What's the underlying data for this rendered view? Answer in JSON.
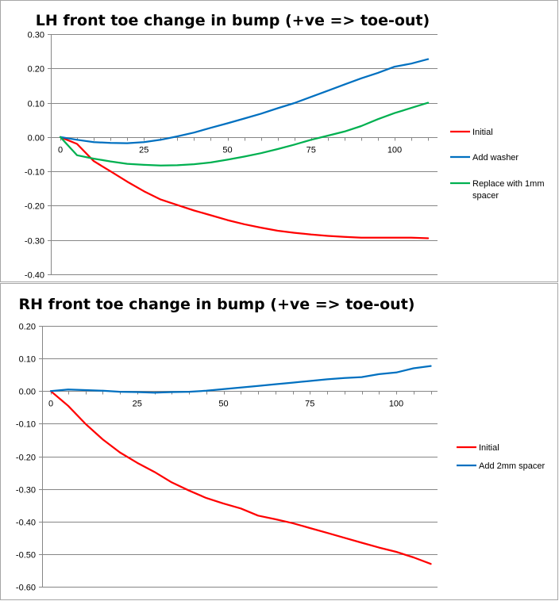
{
  "chart_data": [
    {
      "type": "line",
      "title": "LH front toe change in bump (+ve => toe-out)",
      "xlabel": "",
      "ylabel": "",
      "xlim": [
        0,
        110
      ],
      "ylim": [
        -0.4,
        0.3
      ],
      "x_ticks": [
        "0",
        "25",
        "50",
        "75",
        "100"
      ],
      "y_ticks": [
        "0.30",
        "0.20",
        "0.10",
        "0.00",
        "-0.10",
        "-0.20",
        "-0.30",
        "-0.40"
      ],
      "grid": "horizontal",
      "legend_position": "right",
      "x": [
        0,
        5,
        10,
        15,
        20,
        25,
        30,
        35,
        40,
        45,
        50,
        55,
        60,
        65,
        70,
        75,
        80,
        85,
        90,
        95,
        100,
        105,
        110
      ],
      "series": [
        {
          "name": "Initial",
          "color": "#ff0000",
          "values": [
            0.0,
            -0.02,
            -0.07,
            -0.1,
            -0.13,
            -0.158,
            -0.182,
            -0.198,
            -0.214,
            -0.228,
            -0.242,
            -0.254,
            -0.264,
            -0.273,
            -0.279,
            -0.284,
            -0.288,
            -0.291,
            -0.293,
            -0.293,
            -0.293,
            -0.293,
            -0.295
          ]
        },
        {
          "name": "Add washer",
          "color": "#0070c0",
          "values": [
            0.0,
            -0.008,
            -0.015,
            -0.017,
            -0.018,
            -0.015,
            -0.008,
            0.002,
            0.013,
            0.027,
            0.04,
            0.054,
            0.068,
            0.084,
            0.099,
            0.117,
            0.135,
            0.153,
            0.171,
            0.187,
            0.205,
            0.214,
            0.227
          ]
        },
        {
          "name": "Replace with 1mm spacer",
          "color": "#00b050",
          "values": [
            0.0,
            -0.053,
            -0.063,
            -0.071,
            -0.078,
            -0.081,
            -0.083,
            -0.082,
            -0.079,
            -0.074,
            -0.066,
            -0.057,
            -0.047,
            -0.035,
            -0.022,
            -0.008,
            0.004,
            0.016,
            0.032,
            0.052,
            0.07,
            0.085,
            0.1
          ]
        }
      ]
    },
    {
      "type": "line",
      "title": "RH front toe change in bump (+ve => toe-out)",
      "xlabel": "",
      "ylabel": "",
      "xlim": [
        0,
        110
      ],
      "ylim": [
        -0.6,
        0.2
      ],
      "x_ticks": [
        "0",
        "25",
        "50",
        "75",
        "100"
      ],
      "y_ticks": [
        "0.20",
        "0.10",
        "0.00",
        "-0.10",
        "-0.20",
        "-0.30",
        "-0.40",
        "-0.50",
        "-0.60"
      ],
      "grid": "horizontal",
      "legend_position": "right",
      "x": [
        0,
        5,
        10,
        15,
        20,
        25,
        30,
        35,
        40,
        45,
        50,
        55,
        60,
        65,
        70,
        75,
        80,
        85,
        90,
        95,
        100,
        105,
        110
      ],
      "series": [
        {
          "name": "Initial",
          "color": "#ff0000",
          "values": [
            0.0,
            -0.045,
            -0.1,
            -0.148,
            -0.188,
            -0.22,
            -0.248,
            -0.28,
            -0.305,
            -0.328,
            -0.345,
            -0.36,
            -0.382,
            -0.393,
            -0.405,
            -0.42,
            -0.435,
            -0.45,
            -0.465,
            -0.48,
            -0.493,
            -0.51,
            -0.53
          ]
        },
        {
          "name": "Add 2mm spacer",
          "color": "#0070c0",
          "values": [
            0.0,
            0.005,
            0.003,
            0.001,
            -0.002,
            -0.003,
            -0.005,
            -0.003,
            -0.002,
            0.001,
            0.006,
            0.011,
            0.016,
            0.021,
            0.026,
            0.031,
            0.036,
            0.04,
            0.043,
            0.052,
            0.057,
            0.07,
            0.077
          ]
        }
      ]
    }
  ]
}
